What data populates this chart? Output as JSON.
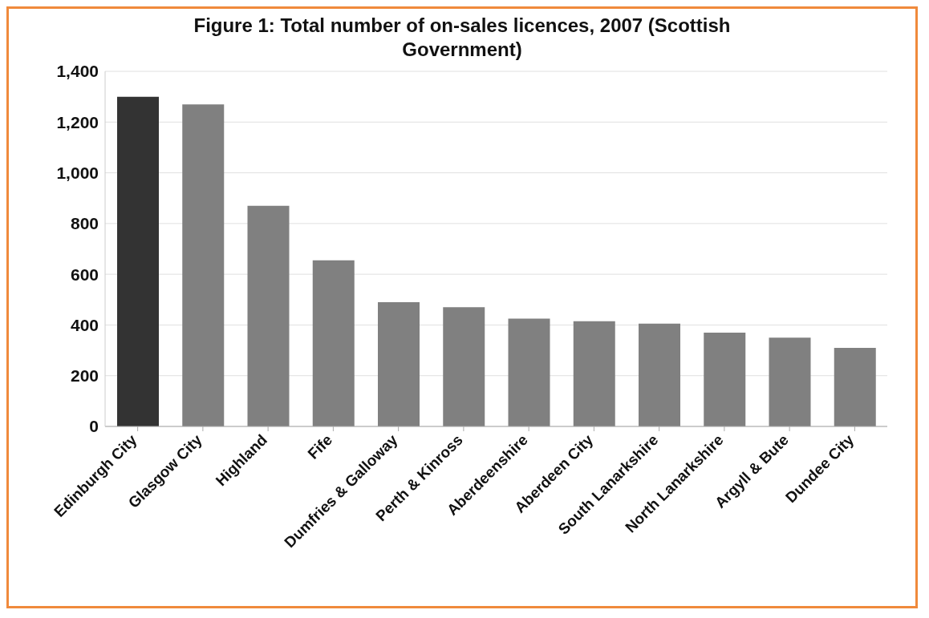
{
  "chart_data": {
    "type": "bar",
    "title": "Figure 1: Total number of on-sales licences, 2007 (Scottish Government)",
    "categories": [
      "Edinburgh City",
      "Glasgow City",
      "Highland",
      "Fife",
      "Dumfries & Galloway",
      "Perth & Kinross",
      "Aberdeenshire",
      "Aberdeen City",
      "South Lanarkshire",
      "North Lanarkshire",
      "Argyll & Bute",
      "Dundee City"
    ],
    "values": [
      1300,
      1270,
      870,
      655,
      490,
      470,
      425,
      415,
      405,
      370,
      350,
      310
    ],
    "colors": [
      "#333333",
      "#808080",
      "#808080",
      "#808080",
      "#808080",
      "#808080",
      "#808080",
      "#808080",
      "#808080",
      "#808080",
      "#808080",
      "#808080"
    ],
    "ylim": [
      0,
      1400
    ],
    "yticks": [
      0,
      200,
      400,
      600,
      800,
      {
        "value": 1000,
        "label": "1,000"
      },
      {
        "value": 1200,
        "label": "1,200"
      },
      {
        "value": 1400,
        "label": "1,400"
      }
    ],
    "grid": "y"
  }
}
